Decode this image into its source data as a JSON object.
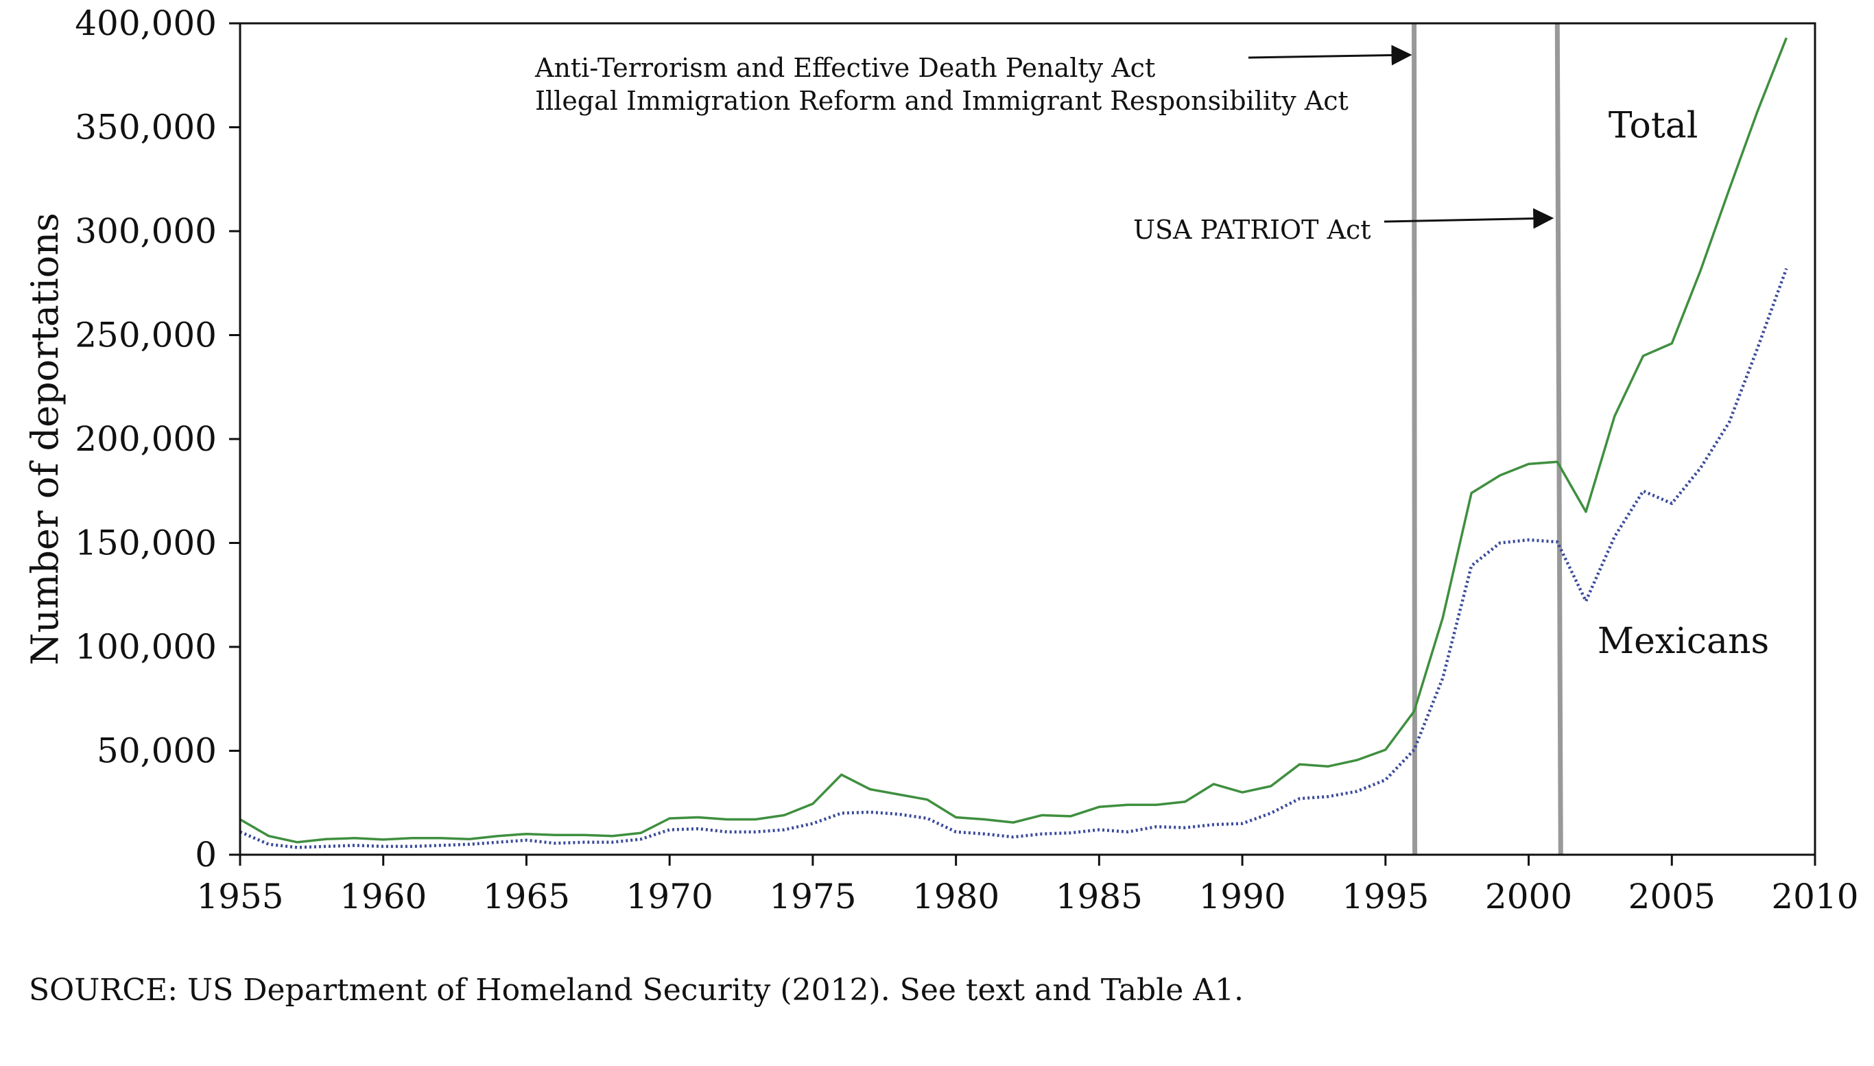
{
  "chart_data": {
    "type": "line",
    "ylabel": "Number of deportations",
    "xlim": [
      1955,
      2010
    ],
    "ylim": [
      0,
      400000
    ],
    "x_ticks": [
      1955,
      1960,
      1965,
      1970,
      1975,
      1980,
      1985,
      1990,
      1995,
      2000,
      2005,
      2010
    ],
    "x_tick_labels": [
      "1955",
      "1960",
      "1965",
      "1970",
      "1975",
      "1980",
      "1985",
      "1990",
      "1995",
      "2000",
      "2005",
      "2010"
    ],
    "y_ticks": [
      0,
      50000,
      100000,
      150000,
      200000,
      250000,
      300000,
      350000,
      400000
    ],
    "y_tick_labels": [
      "0",
      "50,000",
      "100,000",
      "150,000",
      "200,000",
      "250,000",
      "300,000",
      "350,000",
      "400,000"
    ],
    "grid": false,
    "x": [
      1955,
      1956,
      1957,
      1958,
      1959,
      1960,
      1961,
      1962,
      1963,
      1964,
      1965,
      1966,
      1967,
      1968,
      1969,
      1970,
      1971,
      1972,
      1973,
      1974,
      1975,
      1976,
      1977,
      1978,
      1979,
      1980,
      1981,
      1982,
      1983,
      1984,
      1985,
      1986,
      1987,
      1988,
      1989,
      1990,
      1991,
      1992,
      1993,
      1994,
      1995,
      1996,
      1997,
      1998,
      1999,
      2000,
      2001,
      2002,
      2003,
      2004,
      2005,
      2006,
      2007,
      2008,
      2009
    ],
    "series": [
      {
        "name": "Total",
        "color": "#3f8f3f",
        "style": "solid",
        "values": [
          17000,
          9000,
          6000,
          7500,
          8000,
          7300,
          8000,
          8000,
          7500,
          9000,
          10000,
          9500,
          9500,
          9000,
          10500,
          17500,
          18000,
          17000,
          17000,
          19000,
          24500,
          38500,
          31500,
          29000,
          26500,
          18000,
          17000,
          15500,
          19000,
          18500,
          23000,
          24000,
          24000,
          25500,
          34000,
          30000,
          33000,
          43500,
          42500,
          45500,
          50500,
          69000,
          114000,
          174000,
          182500,
          188000,
          189000,
          165000,
          211000,
          240000,
          246000,
          281000,
          320000,
          358000,
          393000
        ],
        "label_position": "upper-right"
      },
      {
        "name": "Mexicans",
        "color": "#3a4a9a",
        "style": "dotted",
        "values": [
          11000,
          5000,
          3500,
          4000,
          4500,
          4000,
          4000,
          4500,
          5000,
          6000,
          7000,
          5500,
          6000,
          6000,
          7500,
          12000,
          12500,
          11000,
          11000,
          12000,
          15000,
          20000,
          20500,
          19500,
          17500,
          11000,
          10000,
          8500,
          10000,
          10500,
          12000,
          11000,
          13500,
          13000,
          14500,
          15000,
          20000,
          27000,
          28000,
          30500,
          36000,
          50500,
          85000,
          139000,
          150000,
          151500,
          150500,
          122000,
          153000,
          175000,
          169000,
          186000,
          208000,
          244000,
          282000
        ],
        "label_position": "right"
      }
    ],
    "events": [
      {
        "x": 1996,
        "labels": [
          "Anti-Terrorism and Effective Death Penalty Act",
          "Illegal Immigration Reform and Immigrant Responsibility Act"
        ]
      },
      {
        "x": 2001,
        "labels": [
          "USA PATRIOT Act"
        ]
      }
    ],
    "event_line_color": "#999999"
  },
  "source_note": "SOURCE: US Department of Homeland Security (2012). See text and Table A1."
}
